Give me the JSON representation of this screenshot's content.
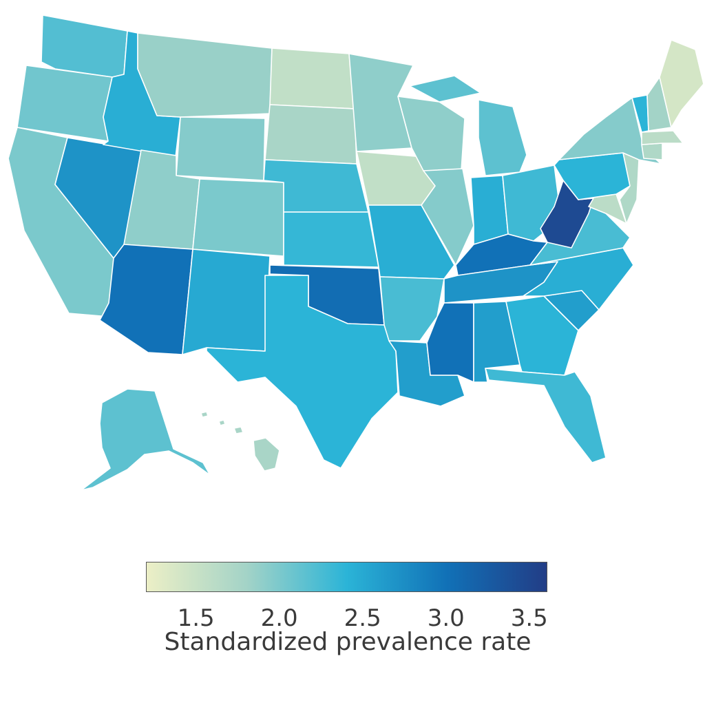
{
  "legend": {
    "title": "Standardized prevalence rate",
    "ticks": [
      "1.5",
      "2.0",
      "2.5",
      "3.0",
      "3.5"
    ],
    "tick_values": [
      1.5,
      2.0,
      2.5,
      3.0,
      3.5
    ],
    "range": [
      1.2,
      3.6
    ],
    "color_stops": [
      "#ecefc6",
      "#a3d3c7",
      "#2bb4d7",
      "#1171b7",
      "#223d86"
    ]
  },
  "states": {
    "WA": 2.2,
    "OR": 2.05,
    "CA": 2.0,
    "NV": 2.7,
    "ID": 2.45,
    "MT": 1.85,
    "WY": 1.95,
    "UT": 1.9,
    "AZ": 3.0,
    "CO": 2.0,
    "NM": 2.5,
    "ND": 1.55,
    "SD": 1.75,
    "NE": 2.3,
    "KS": 2.35,
    "OK": 3.05,
    "TX": 2.4,
    "MN": 1.9,
    "IA": 1.55,
    "MO": 2.45,
    "AR": 2.25,
    "LA": 2.6,
    "WI": 1.9,
    "IL": 1.95,
    "MI": 2.15,
    "IN": 2.45,
    "OH": 2.3,
    "KY": 3.0,
    "TN": 2.7,
    "MS": 3.0,
    "AL": 2.6,
    "GA": 2.4,
    "FL": 2.3,
    "SC": 2.6,
    "NC": 2.45,
    "VA": 2.25,
    "WV": 3.45,
    "PA": 2.4,
    "NY": 1.95,
    "VT": 2.4,
    "NH": 1.8,
    "ME": 1.4,
    "MA": 1.6,
    "CT": 1.7,
    "NJ": 1.7,
    "MD": 1.6,
    "AK": 2.15,
    "HI": 1.75
  }
}
